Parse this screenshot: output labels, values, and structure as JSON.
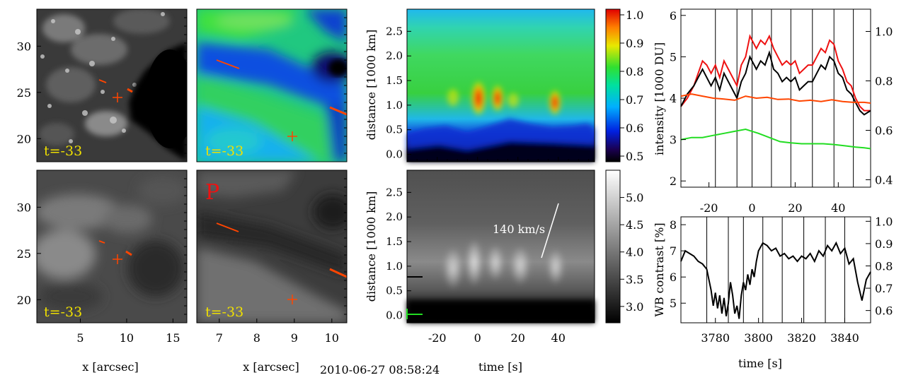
{
  "timestamp": "2010-06-27 08:58:24",
  "colors": {
    "orange": "#ff4500",
    "red": "#ee1111",
    "green": "#22dd22",
    "yellow": "#f0e000",
    "black": "#000000"
  },
  "panels": {
    "ca_img_top": {
      "label": "t=-33",
      "yticks": [
        "30",
        "25",
        "20"
      ]
    },
    "cont_top": {
      "label": "t=-33"
    },
    "ca_img_bot": {
      "label": "t=-33",
      "yticks": [
        "30",
        "25",
        "20"
      ],
      "xticks": [
        "5",
        "10",
        "15"
      ],
      "xlabel": "x [arcsec]"
    },
    "cont_bot": {
      "label": "t=-33",
      "letter": "P",
      "xticks": [
        "7",
        "8",
        "9",
        "10"
      ],
      "xlabel": "x [arcsec]"
    }
  },
  "chart_data": [
    {
      "id": "timeslice-top",
      "type": "heatmap",
      "ylabel": "distance [1000 km]",
      "ylim": [
        -0.15,
        2.95
      ],
      "yticks": [
        "0.0",
        "0.5",
        "1.0",
        "1.5",
        "2.0",
        "2.5"
      ],
      "xlim": [
        -35,
        58
      ],
      "colorbar": {
        "ticks": [
          "1.0",
          "0.9",
          "0.8",
          "0.7",
          "0.6",
          "0.5"
        ],
        "range": [
          0.48,
          1.02
        ],
        "colormap": "rainbow"
      }
    },
    {
      "id": "timeslice-bottom",
      "type": "heatmap",
      "ylabel": "distance [1000 km]",
      "ylim": [
        -0.15,
        2.95
      ],
      "yticks": [
        "0.0",
        "0.5",
        "1.0",
        "1.5",
        "2.0",
        "2.5"
      ],
      "xlabel": "time [s]",
      "xticks": [
        "-20",
        "0",
        "20",
        "40"
      ],
      "xlim": [
        -35,
        58
      ],
      "annotation": "140 km/s",
      "colorbar": {
        "ticks": [
          "5.0",
          "4.5",
          "4.0",
          "3.5",
          "3.0"
        ],
        "range": [
          2.7,
          5.5
        ],
        "colormap": "gray"
      }
    },
    {
      "id": "intensity",
      "type": "line",
      "ylabel": "intensity [1000 DU]",
      "ylim": [
        1.85,
        6.15
      ],
      "yticks": [
        "2",
        "3",
        "4",
        "5",
        "6"
      ],
      "y2lim": [
        0.37,
        1.09
      ],
      "y2ticks": [
        "0.4",
        "0.6",
        "0.8",
        "1.0"
      ],
      "xlim": [
        -33,
        55
      ],
      "xticks": [
        "-20",
        "0",
        "20",
        "40"
      ],
      "vlines": [
        -17,
        -7,
        0,
        9,
        18,
        28,
        38,
        47
      ],
      "series": [
        {
          "name": "red",
          "color": "#ee1111",
          "x": [
            -33,
            -30,
            -27,
            -25,
            -23,
            -21,
            -19,
            -17,
            -15,
            -13,
            -11,
            -9,
            -7,
            -5,
            -3,
            -1,
            0,
            2,
            4,
            6,
            8,
            10,
            12,
            14,
            16,
            18,
            20,
            22,
            24,
            26,
            28,
            30,
            32,
            34,
            36,
            38,
            40,
            42,
            44,
            46,
            48,
            50,
            52,
            55
          ],
          "y": [
            3.8,
            4.0,
            4.3,
            4.6,
            4.9,
            4.8,
            4.6,
            4.8,
            4.5,
            4.9,
            4.7,
            4.5,
            4.3,
            4.8,
            5.0,
            5.5,
            5.4,
            5.2,
            5.4,
            5.3,
            5.5,
            5.2,
            5.0,
            4.8,
            4.9,
            4.8,
            4.9,
            4.6,
            4.7,
            4.8,
            4.8,
            5.0,
            5.2,
            5.1,
            5.4,
            5.3,
            4.9,
            4.7,
            4.4,
            4.3,
            4.0,
            3.8,
            3.7,
            3.7
          ]
        },
        {
          "name": "black",
          "color": "#000000",
          "x": [
            -33,
            -30,
            -27,
            -25,
            -23,
            -21,
            -19,
            -17,
            -15,
            -13,
            -11,
            -9,
            -7,
            -5,
            -3,
            -1,
            0,
            2,
            4,
            6,
            8,
            10,
            12,
            14,
            16,
            18,
            20,
            22,
            24,
            26,
            28,
            30,
            32,
            34,
            36,
            38,
            40,
            42,
            44,
            46,
            48,
            50,
            52,
            55
          ],
          "y": [
            3.8,
            4.1,
            4.3,
            4.5,
            4.7,
            4.5,
            4.3,
            4.5,
            4.2,
            4.6,
            4.4,
            4.2,
            4.0,
            4.4,
            4.6,
            5.0,
            4.9,
            4.7,
            4.9,
            4.8,
            5.1,
            4.7,
            4.6,
            4.4,
            4.5,
            4.4,
            4.5,
            4.2,
            4.3,
            4.4,
            4.4,
            4.6,
            4.8,
            4.7,
            5.0,
            4.9,
            4.6,
            4.5,
            4.2,
            4.1,
            3.9,
            3.7,
            3.6,
            3.7
          ]
        },
        {
          "name": "orange",
          "color": "#ff4500",
          "x": [
            -33,
            -28,
            -23,
            -18,
            -13,
            -8,
            -3,
            2,
            7,
            12,
            17,
            22,
            27,
            32,
            37,
            42,
            47,
            52,
            55
          ],
          "y": [
            4.05,
            4.1,
            4.05,
            4.0,
            3.98,
            3.95,
            4.05,
            4.0,
            4.02,
            3.97,
            3.98,
            3.93,
            3.95,
            3.92,
            3.96,
            3.92,
            3.9,
            3.9,
            3.88
          ]
        },
        {
          "name": "green",
          "color": "#22dd22",
          "x": [
            -33,
            -28,
            -23,
            -18,
            -13,
            -8,
            -3,
            0,
            3,
            8,
            13,
            18,
            23,
            28,
            33,
            38,
            43,
            48,
            52,
            55
          ],
          "y": [
            3.0,
            3.05,
            3.05,
            3.1,
            3.15,
            3.2,
            3.25,
            3.2,
            3.15,
            3.05,
            2.95,
            2.92,
            2.9,
            2.9,
            2.9,
            2.88,
            2.85,
            2.82,
            2.8,
            2.78
          ]
        }
      ]
    },
    {
      "id": "wb-contrast",
      "type": "line",
      "ylabel": "WB contrast [%]",
      "ylim": [
        4.25,
        8.3
      ],
      "yticks": [
        "5",
        "6",
        "7",
        "8"
      ],
      "y2lim": [
        0.545,
        1.02
      ],
      "y2ticks": [
        "0.6",
        "0.7",
        "0.8",
        "0.9",
        "1.0"
      ],
      "xlabel": "time [s]",
      "xlim": [
        3764,
        3852
      ],
      "xticks": [
        "3780",
        "3800",
        "3820",
        "3840"
      ],
      "vlines": [
        3776,
        3786,
        3793,
        3802,
        3811,
        3821,
        3831,
        3840
      ],
      "series": [
        {
          "name": "black",
          "color": "#000000",
          "x": [
            3764,
            3766,
            3768,
            3770,
            3772,
            3774,
            3776,
            3778,
            3779,
            3780,
            3781,
            3782,
            3783,
            3784,
            3785,
            3786,
            3787,
            3788,
            3789,
            3790,
            3791,
            3792,
            3793,
            3794,
            3795,
            3796,
            3797,
            3798,
            3799,
            3800,
            3802,
            3804,
            3806,
            3808,
            3810,
            3812,
            3814,
            3816,
            3818,
            3820,
            3822,
            3824,
            3826,
            3828,
            3830,
            3832,
            3834,
            3836,
            3838,
            3840,
            3842,
            3844,
            3846,
            3848,
            3850,
            3852
          ],
          "y": [
            6.6,
            7.0,
            6.9,
            6.8,
            6.6,
            6.5,
            6.3,
            5.5,
            4.9,
            5.4,
            4.8,
            5.3,
            4.6,
            5.2,
            4.5,
            5.0,
            5.8,
            5.3,
            4.6,
            4.9,
            4.4,
            5.3,
            5.8,
            5.5,
            6.1,
            5.7,
            6.3,
            6.0,
            6.6,
            7.0,
            7.3,
            7.2,
            7.0,
            7.1,
            6.8,
            6.9,
            6.7,
            6.8,
            6.6,
            6.8,
            6.7,
            6.9,
            6.6,
            7.0,
            6.8,
            7.2,
            7.0,
            7.3,
            6.9,
            7.1,
            6.5,
            6.7,
            5.8,
            5.1,
            5.9,
            6.2
          ]
        }
      ]
    }
  ]
}
